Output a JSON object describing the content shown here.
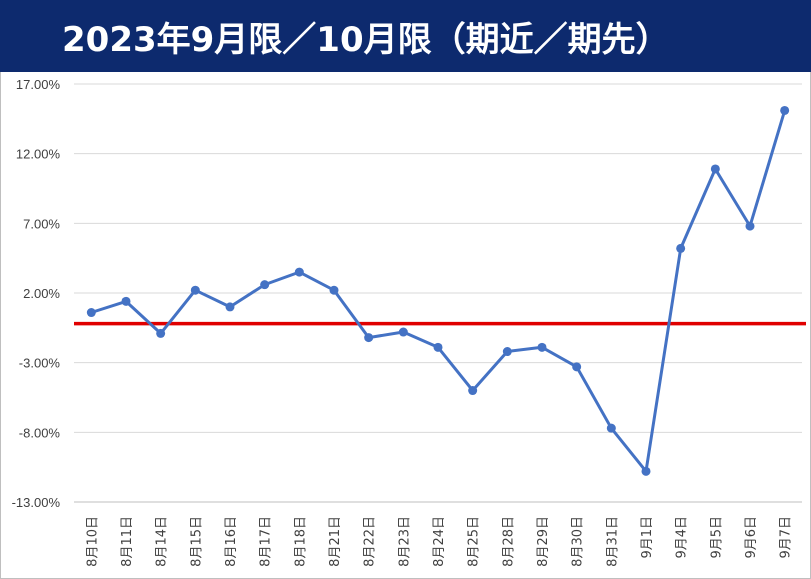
{
  "colors": {
    "title_background": "#0d2a6e",
    "title_text": "#ffffff",
    "series_line": "#4472c4",
    "reference_line": "#e00000",
    "gridline": "#d9d9d9"
  },
  "chart_data": {
    "type": "line",
    "title": "2023年9月限／10月限（期近／期先）",
    "xlabel": "",
    "ylabel": "",
    "grid": true,
    "legend": "none",
    "ylim": [
      -13,
      17
    ],
    "y_ticks": [
      "17.00%",
      "12.00%",
      "7.00%",
      "2.00%",
      "-3.00%",
      "-8.00%",
      "-13.00%"
    ],
    "y_tick_values": [
      17,
      12,
      7,
      2,
      -3,
      -8,
      -13
    ],
    "reference_line_value": -0.2,
    "categories": [
      "8月10日",
      "8月11日",
      "8月14日",
      "8月15日",
      "8月16日",
      "8月17日",
      "8月18日",
      "8月21日",
      "8月22日",
      "8月23日",
      "8月24日",
      "8月25日",
      "8月28日",
      "8月29日",
      "8月30日",
      "8月31日",
      "9月1日",
      "9月4日",
      "9月5日",
      "9月6日",
      "9月7日"
    ],
    "series": [
      {
        "values": [
          0.6,
          1.4,
          -0.9,
          2.2,
          1.0,
          2.6,
          3.5,
          2.2,
          -1.2,
          -0.8,
          -1.9,
          -5.0,
          -2.2,
          -1.9,
          -3.3,
          -7.7,
          -10.8,
          5.2,
          10.9,
          6.8,
          15.1
        ]
      }
    ]
  }
}
